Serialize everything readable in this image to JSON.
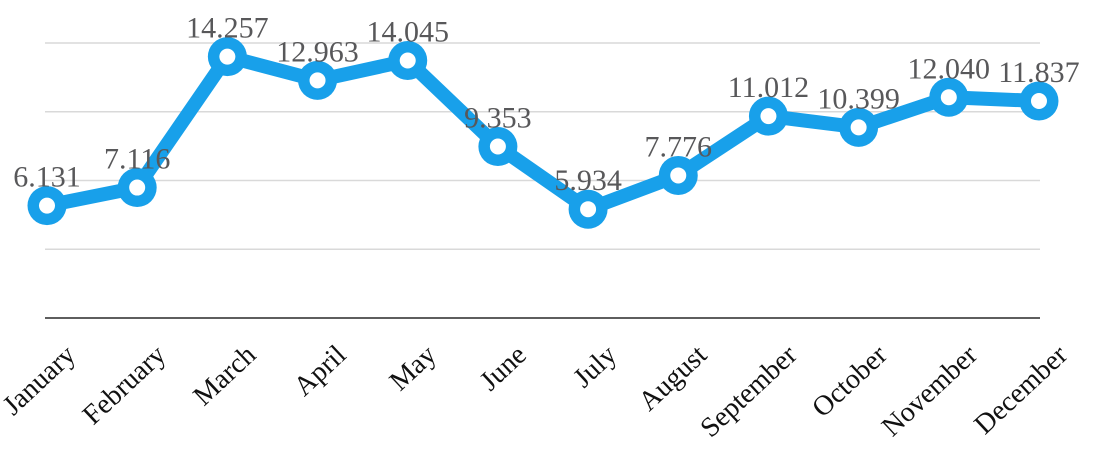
{
  "chart_data": {
    "type": "line",
    "title": "",
    "categories": [
      "January",
      "February",
      "March",
      "April",
      "May",
      "June",
      "July",
      "August",
      "September",
      "October",
      "November",
      "December"
    ],
    "series": [
      {
        "name": "monthly-values",
        "values": [
          6131,
          7116,
          14257,
          12963,
          14045,
          9353,
          5934,
          7776,
          11012,
          10399,
          12040,
          11837
        ],
        "labels": [
          "6.131",
          "7.116",
          "14.257",
          "12.963",
          "14.045",
          "9.353",
          "5.934",
          "7.776",
          "11.012",
          "10.399",
          "12.040",
          "11.837"
        ]
      }
    ],
    "xlabel": "",
    "ylabel": "",
    "ylim": [
      0,
      15000
    ],
    "yticks_shown": false,
    "grid": "horizontal",
    "gridline_count": 4,
    "legend": "none",
    "marker_style": "donut",
    "category_label_rotation_deg": -43,
    "colors": {
      "line": "#18A0EA",
      "marker_fill": "#18A0EA",
      "marker_center": "#FFFFFF",
      "grid": "#D9D9D9",
      "axis": "#474747",
      "data_label": "#58585A",
      "category_label": "#111111",
      "background": "#FFFFFF"
    }
  }
}
